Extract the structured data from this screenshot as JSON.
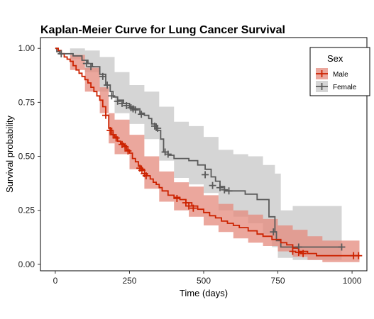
{
  "chart_data": {
    "type": "line",
    "subtype": "kaplan-meier-step",
    "title": "Kaplan-Meier Curve for Lung Cancer Survival",
    "xlabel": "Time (days)",
    "ylabel": "Survival probability",
    "xlim": [
      -50,
      1050
    ],
    "ylim": [
      -0.03,
      1.05
    ],
    "x_ticks": [
      0,
      250,
      500,
      750,
      1000
    ],
    "y_ticks": [
      0.0,
      0.25,
      0.5,
      0.75,
      1.0
    ],
    "y_tick_labels": [
      "0.00",
      "0.25",
      "0.50",
      "0.75",
      "1.00"
    ],
    "grid": false,
    "legend": {
      "title": "Sex",
      "position": "top-right, inside plot",
      "entries": [
        "Male",
        "Female"
      ]
    },
    "series": [
      {
        "name": "Male",
        "color": "#cc2200",
        "ci_color": "#e48a7c",
        "steps": [
          [
            0,
            1.0
          ],
          [
            10,
            0.99
          ],
          [
            20,
            0.975
          ],
          [
            30,
            0.96
          ],
          [
            40,
            0.95
          ],
          [
            50,
            0.94
          ],
          [
            60,
            0.92
          ],
          [
            70,
            0.9
          ],
          [
            80,
            0.885
          ],
          [
            90,
            0.87
          ],
          [
            100,
            0.855
          ],
          [
            110,
            0.84
          ],
          [
            120,
            0.82
          ],
          [
            130,
            0.8
          ],
          [
            140,
            0.78
          ],
          [
            150,
            0.76
          ],
          [
            160,
            0.73
          ],
          [
            170,
            0.69
          ],
          [
            180,
            0.63
          ],
          [
            190,
            0.6
          ],
          [
            200,
            0.59
          ],
          [
            210,
            0.57
          ],
          [
            220,
            0.56
          ],
          [
            230,
            0.55
          ],
          [
            240,
            0.53
          ],
          [
            250,
            0.515
          ],
          [
            260,
            0.49
          ],
          [
            270,
            0.475
          ],
          [
            280,
            0.455
          ],
          [
            290,
            0.44
          ],
          [
            300,
            0.42
          ],
          [
            310,
            0.41
          ],
          [
            320,
            0.395
          ],
          [
            330,
            0.38
          ],
          [
            340,
            0.37
          ],
          [
            350,
            0.355
          ],
          [
            360,
            0.34
          ],
          [
            380,
            0.32
          ],
          [
            400,
            0.31
          ],
          [
            420,
            0.3
          ],
          [
            440,
            0.285
          ],
          [
            460,
            0.27
          ],
          [
            480,
            0.255
          ],
          [
            500,
            0.24
          ],
          [
            520,
            0.225
          ],
          [
            540,
            0.215
          ],
          [
            560,
            0.2
          ],
          [
            580,
            0.19
          ],
          [
            600,
            0.18
          ],
          [
            620,
            0.17
          ],
          [
            650,
            0.155
          ],
          [
            680,
            0.14
          ],
          [
            700,
            0.13
          ],
          [
            730,
            0.115
          ],
          [
            760,
            0.1
          ],
          [
            780,
            0.09
          ],
          [
            800,
            0.075
          ],
          [
            820,
            0.06
          ],
          [
            850,
            0.05
          ],
          [
            880,
            0.04
          ],
          [
            1025,
            0.04
          ]
        ],
        "ci_lower": [
          [
            0,
            1.0
          ],
          [
            50,
            0.9
          ],
          [
            100,
            0.8
          ],
          [
            150,
            0.7
          ],
          [
            180,
            0.56
          ],
          [
            200,
            0.51
          ],
          [
            250,
            0.44
          ],
          [
            300,
            0.35
          ],
          [
            350,
            0.29
          ],
          [
            400,
            0.25
          ],
          [
            450,
            0.22
          ],
          [
            500,
            0.18
          ],
          [
            550,
            0.15
          ],
          [
            600,
            0.12
          ],
          [
            650,
            0.1
          ],
          [
            700,
            0.085
          ],
          [
            750,
            0.06
          ],
          [
            800,
            0.035
          ],
          [
            850,
            0.02
          ],
          [
            900,
            0.01
          ],
          [
            1025,
            0.01
          ]
        ],
        "ci_upper": [
          [
            0,
            1.0
          ],
          [
            50,
            0.97
          ],
          [
            100,
            0.91
          ],
          [
            150,
            0.82
          ],
          [
            180,
            0.7
          ],
          [
            200,
            0.67
          ],
          [
            250,
            0.6
          ],
          [
            300,
            0.5
          ],
          [
            350,
            0.43
          ],
          [
            400,
            0.38
          ],
          [
            450,
            0.36
          ],
          [
            500,
            0.32
          ],
          [
            550,
            0.28
          ],
          [
            600,
            0.25
          ],
          [
            650,
            0.23
          ],
          [
            700,
            0.21
          ],
          [
            750,
            0.18
          ],
          [
            800,
            0.16
          ],
          [
            850,
            0.13
          ],
          [
            900,
            0.11
          ],
          [
            1025,
            0.1
          ]
        ],
        "censored": [
          [
            170,
            0.69
          ],
          [
            185,
            0.62
          ],
          [
            195,
            0.6
          ],
          [
            205,
            0.585
          ],
          [
            225,
            0.555
          ],
          [
            235,
            0.545
          ],
          [
            245,
            0.525
          ],
          [
            285,
            0.445
          ],
          [
            292,
            0.435
          ],
          [
            300,
            0.42
          ],
          [
            306,
            0.41
          ],
          [
            410,
            0.305
          ],
          [
            440,
            0.285
          ],
          [
            450,
            0.27
          ],
          [
            465,
            0.26
          ],
          [
            800,
            0.06
          ],
          [
            820,
            0.055
          ],
          [
            835,
            0.05
          ],
          [
            1005,
            0.04
          ],
          [
            1022,
            0.04
          ]
        ]
      },
      {
        "name": "Female",
        "color": "#5a5a5a",
        "ci_color": "#c7c7c7",
        "steps": [
          [
            0,
            1.0
          ],
          [
            5,
            0.985
          ],
          [
            15,
            0.975
          ],
          [
            60,
            0.965
          ],
          [
            90,
            0.945
          ],
          [
            110,
            0.93
          ],
          [
            125,
            0.915
          ],
          [
            150,
            0.88
          ],
          [
            170,
            0.83
          ],
          [
            185,
            0.8
          ],
          [
            195,
            0.775
          ],
          [
            210,
            0.76
          ],
          [
            230,
            0.745
          ],
          [
            250,
            0.73
          ],
          [
            265,
            0.72
          ],
          [
            285,
            0.7
          ],
          [
            300,
            0.69
          ],
          [
            315,
            0.675
          ],
          [
            325,
            0.65
          ],
          [
            340,
            0.62
          ],
          [
            355,
            0.58
          ],
          [
            365,
            0.52
          ],
          [
            380,
            0.505
          ],
          [
            400,
            0.49
          ],
          [
            450,
            0.48
          ],
          [
            480,
            0.46
          ],
          [
            505,
            0.44
          ],
          [
            525,
            0.405
          ],
          [
            540,
            0.385
          ],
          [
            555,
            0.36
          ],
          [
            570,
            0.34
          ],
          [
            600,
            0.34
          ],
          [
            640,
            0.325
          ],
          [
            680,
            0.3
          ],
          [
            720,
            0.22
          ],
          [
            740,
            0.15
          ],
          [
            745,
            0.11
          ],
          [
            760,
            0.08
          ],
          [
            965,
            0.08
          ]
        ],
        "ci_lower": [
          [
            0,
            1.0
          ],
          [
            50,
            0.95
          ],
          [
            100,
            0.89
          ],
          [
            150,
            0.8
          ],
          [
            200,
            0.7
          ],
          [
            250,
            0.65
          ],
          [
            300,
            0.58
          ],
          [
            350,
            0.48
          ],
          [
            400,
            0.4
          ],
          [
            450,
            0.37
          ],
          [
            500,
            0.33
          ],
          [
            550,
            0.25
          ],
          [
            600,
            0.22
          ],
          [
            650,
            0.19
          ],
          [
            700,
            0.14
          ],
          [
            730,
            0.08
          ],
          [
            750,
            0.03
          ],
          [
            800,
            0.02
          ],
          [
            965,
            0.02
          ]
        ],
        "ci_upper": [
          [
            0,
            1.0
          ],
          [
            50,
            1.0
          ],
          [
            100,
            0.99
          ],
          [
            150,
            0.96
          ],
          [
            200,
            0.89
          ],
          [
            250,
            0.83
          ],
          [
            300,
            0.8
          ],
          [
            350,
            0.73
          ],
          [
            400,
            0.66
          ],
          [
            450,
            0.64
          ],
          [
            500,
            0.59
          ],
          [
            550,
            0.53
          ],
          [
            600,
            0.51
          ],
          [
            650,
            0.5
          ],
          [
            700,
            0.46
          ],
          [
            740,
            0.42
          ],
          [
            760,
            0.25
          ],
          [
            800,
            0.27
          ],
          [
            965,
            0.27
          ]
        ],
        "censored": [
          [
            20,
            0.975
          ],
          [
            105,
            0.93
          ],
          [
            120,
            0.915
          ],
          [
            160,
            0.87
          ],
          [
            175,
            0.83
          ],
          [
            190,
            0.78
          ],
          [
            210,
            0.755
          ],
          [
            225,
            0.745
          ],
          [
            240,
            0.735
          ],
          [
            255,
            0.725
          ],
          [
            262,
            0.72
          ],
          [
            270,
            0.715
          ],
          [
            290,
            0.695
          ],
          [
            335,
            0.64
          ],
          [
            345,
            0.63
          ],
          [
            370,
            0.52
          ],
          [
            380,
            0.51
          ],
          [
            505,
            0.415
          ],
          [
            530,
            0.365
          ],
          [
            555,
            0.355
          ],
          [
            570,
            0.345
          ],
          [
            585,
            0.34
          ],
          [
            735,
            0.15
          ],
          [
            820,
            0.08
          ],
          [
            965,
            0.08
          ]
        ]
      }
    ]
  }
}
